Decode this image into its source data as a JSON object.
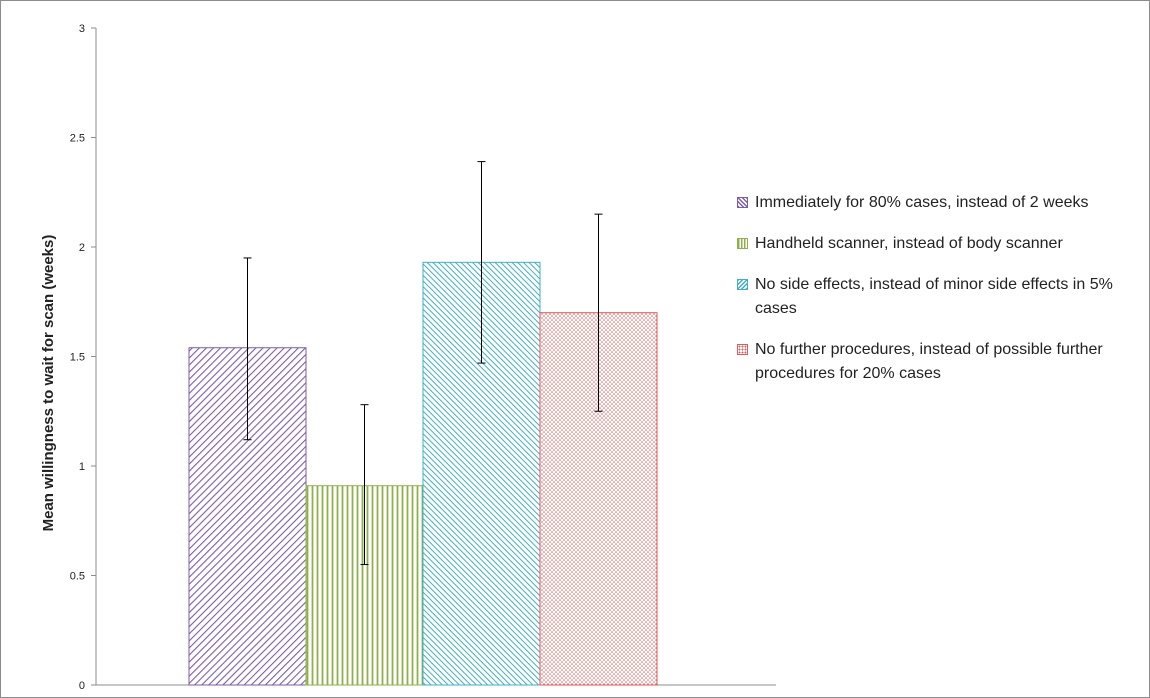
{
  "chart_data": {
    "type": "bar",
    "title": "",
    "xlabel": "",
    "ylabel": "Mean willingness to wait for scan (weeks)",
    "ylim": [
      0,
      3
    ],
    "yticks": [
      "0",
      "0.5",
      "1",
      "1.5",
      "2",
      "2.5",
      "3"
    ],
    "grid": false,
    "legend_position": "right",
    "series": [
      {
        "name": "Immediately for 80% cases, instead of 2 weeks",
        "value": 1.54,
        "error_low": 1.12,
        "error_high": 1.95,
        "color": "#7b5ea7",
        "pattern": "diagonal-right"
      },
      {
        "name": "Handheld scanner, instead of body scanner",
        "value": 0.91,
        "error_low": 0.55,
        "error_high": 1.28,
        "color": "#8db04a",
        "pattern": "vertical"
      },
      {
        "name": "No side effects, instead of minor side effects in 5% cases",
        "value": 1.93,
        "error_low": 1.47,
        "error_high": 2.39,
        "color": "#3fb0c4",
        "pattern": "diagonal-left"
      },
      {
        "name": "No further procedures, instead of possible further procedures for 20% cases",
        "value": 1.7,
        "error_low": 1.25,
        "error_high": 2.15,
        "color": "#e05a5a",
        "pattern": "dots"
      }
    ]
  }
}
